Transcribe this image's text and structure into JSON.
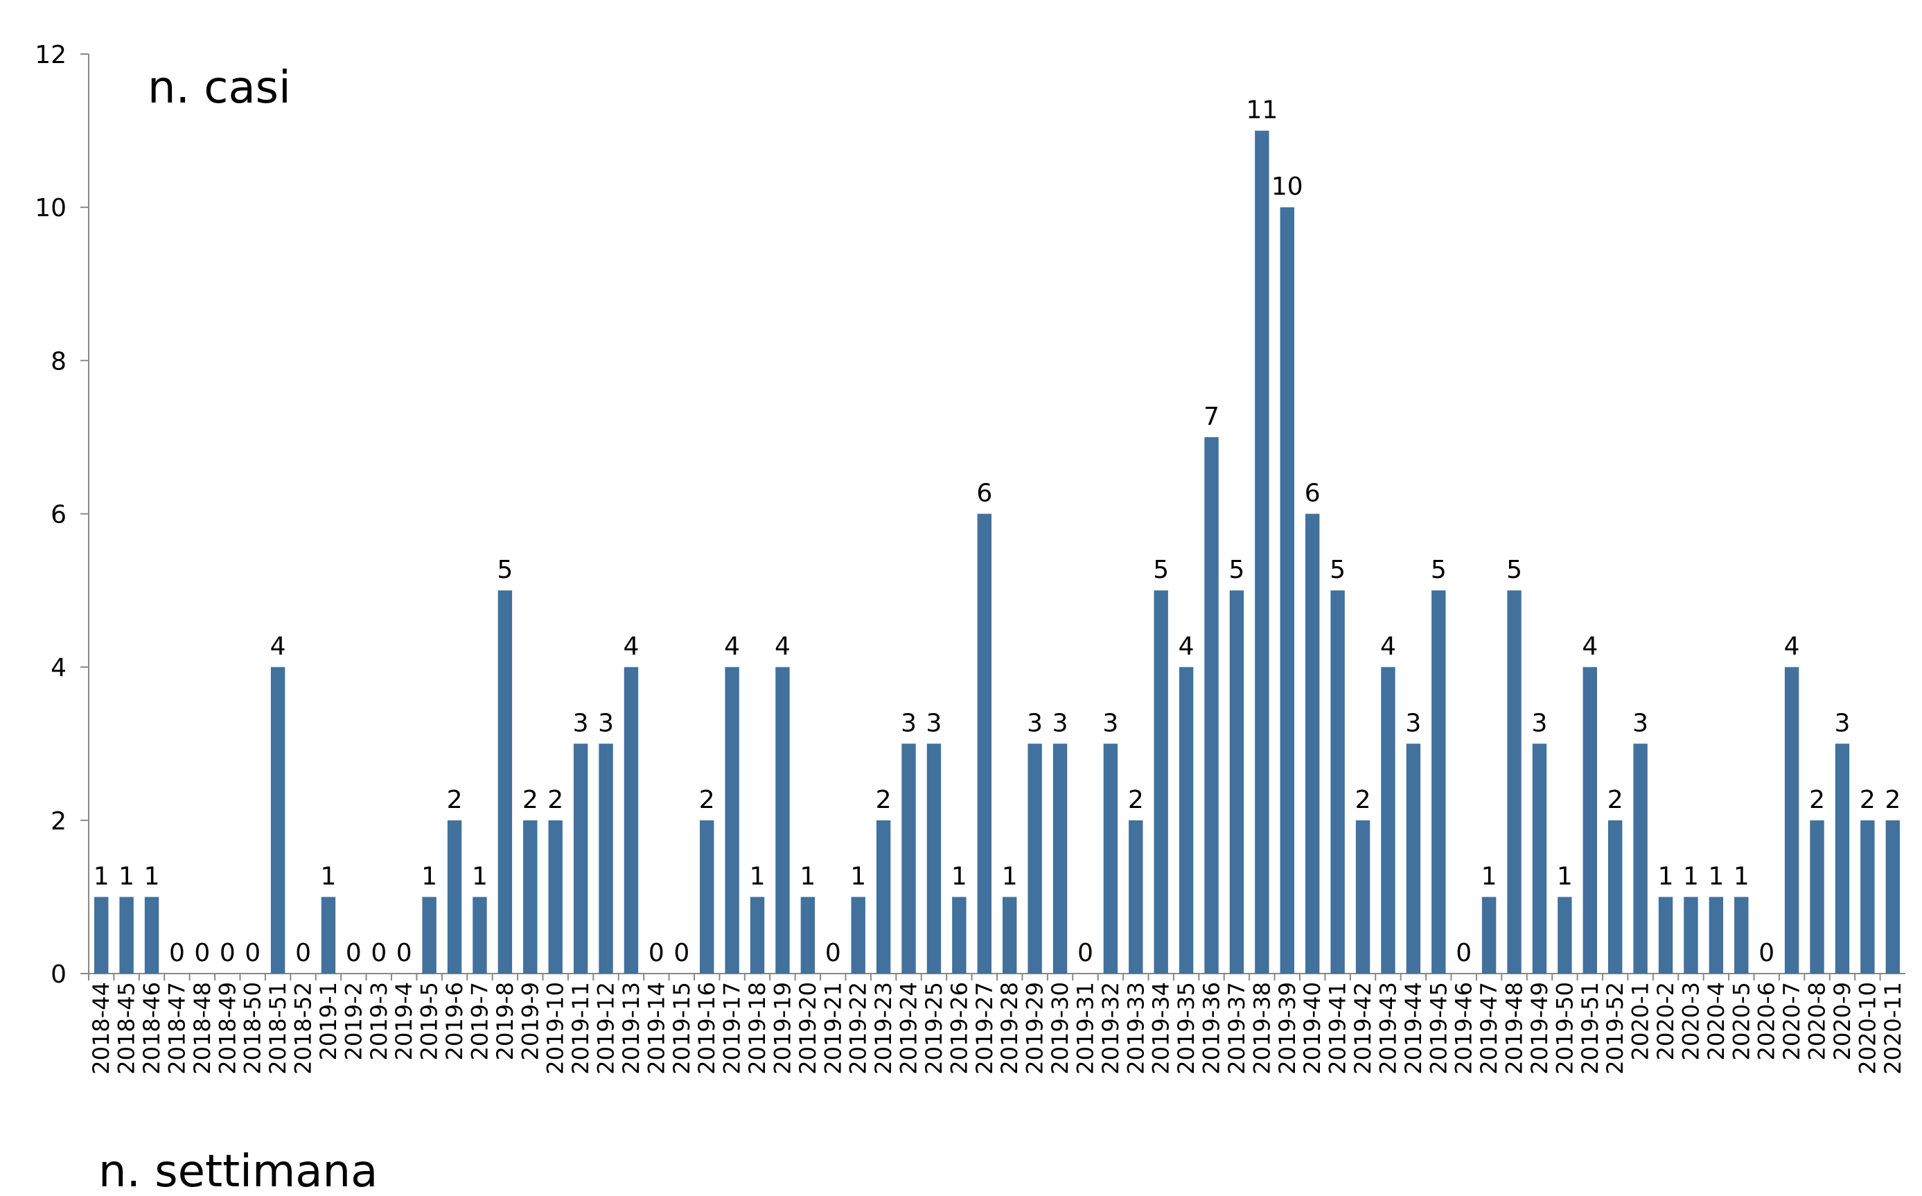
{
  "chart_data": {
    "type": "bar",
    "title": "n. casi",
    "x_label": "n. settimana",
    "categories": [
      "2018-44",
      "2018-45",
      "2018-46",
      "2018-47",
      "2018-48",
      "2018-49",
      "2018-50",
      "2018-51",
      "2018-52",
      "2019-1",
      "2019-2",
      "2019-3",
      "2019-4",
      "2019-5",
      "2019-6",
      "2019-7",
      "2019-8",
      "2019-9",
      "2019-10",
      "2019-11",
      "2019-12",
      "2019-13",
      "2019-14",
      "2019-15",
      "2019-16",
      "2019-17",
      "2019-18",
      "2019-19",
      "2019-20",
      "2019-21",
      "2019-22",
      "2019-23",
      "2019-24",
      "2019-25",
      "2019-26",
      "2019-27",
      "2019-28",
      "2019-29",
      "2019-30",
      "2019-31",
      "2019-32",
      "2019-33",
      "2019-34",
      "2019-35",
      "2019-36",
      "2019-37",
      "2019-38",
      "2019-39",
      "2019-40",
      "2019-41",
      "2019-42",
      "2019-43",
      "2019-44",
      "2019-45",
      "2019-46",
      "2019-47",
      "2019-48",
      "2019-49",
      "2019-50",
      "2019-51",
      "2019-52",
      "2020-1",
      "2020-2",
      "2020-3",
      "2020-4",
      "2020-5",
      "2020-6",
      "2020-7",
      "2020-8",
      "2020-9",
      "2020-10",
      "2020-11"
    ],
    "values": [
      1,
      1,
      1,
      0,
      0,
      0,
      0,
      4,
      0,
      1,
      0,
      0,
      0,
      1,
      2,
      1,
      5,
      2,
      2,
      3,
      3,
      4,
      0,
      0,
      2,
      4,
      1,
      4,
      1,
      0,
      1,
      2,
      3,
      3,
      1,
      6,
      1,
      3,
      3,
      0,
      3,
      2,
      5,
      4,
      7,
      5,
      11,
      10,
      6,
      5,
      2,
      4,
      3,
      5,
      0,
      1,
      5,
      3,
      1,
      4,
      2,
      3,
      1,
      1,
      1,
      1,
      0,
      4,
      2,
      3,
      2,
      2
    ],
    "color": "#41719c",
    "ylim": [
      0,
      12
    ],
    "yticks": [
      0,
      2,
      4,
      6,
      8,
      10,
      12
    ],
    "grid": false
  }
}
